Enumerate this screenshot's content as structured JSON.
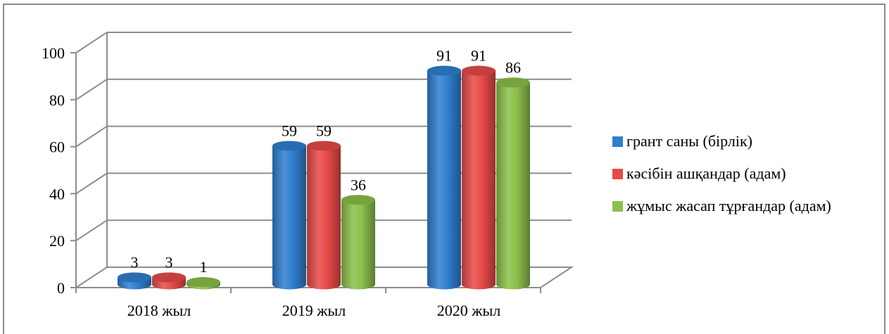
{
  "chart_data": {
    "type": "bar",
    "title": "",
    "xlabel": "",
    "ylabel": "",
    "categories": [
      "2018 жыл",
      "2019 жыл",
      "2020 жыл"
    ],
    "ylim": [
      0,
      100
    ],
    "yticks": [
      "0",
      "20",
      "40",
      "60",
      "80",
      "100"
    ],
    "grid": true,
    "legend_position": "right",
    "series": [
      {
        "name": "грант саны (бірлік)",
        "values": [
          3,
          59,
          91
        ],
        "color": "#2f7fd0"
      },
      {
        "name": "кәсібін ашқандар (адам)",
        "values": [
          3,
          59,
          91
        ],
        "color": "#e84a48"
      },
      {
        "name": "жұмыс жасап тұрғандар (адам)",
        "values": [
          1,
          36,
          86
        ],
        "color": "#8cc04a"
      }
    ]
  }
}
